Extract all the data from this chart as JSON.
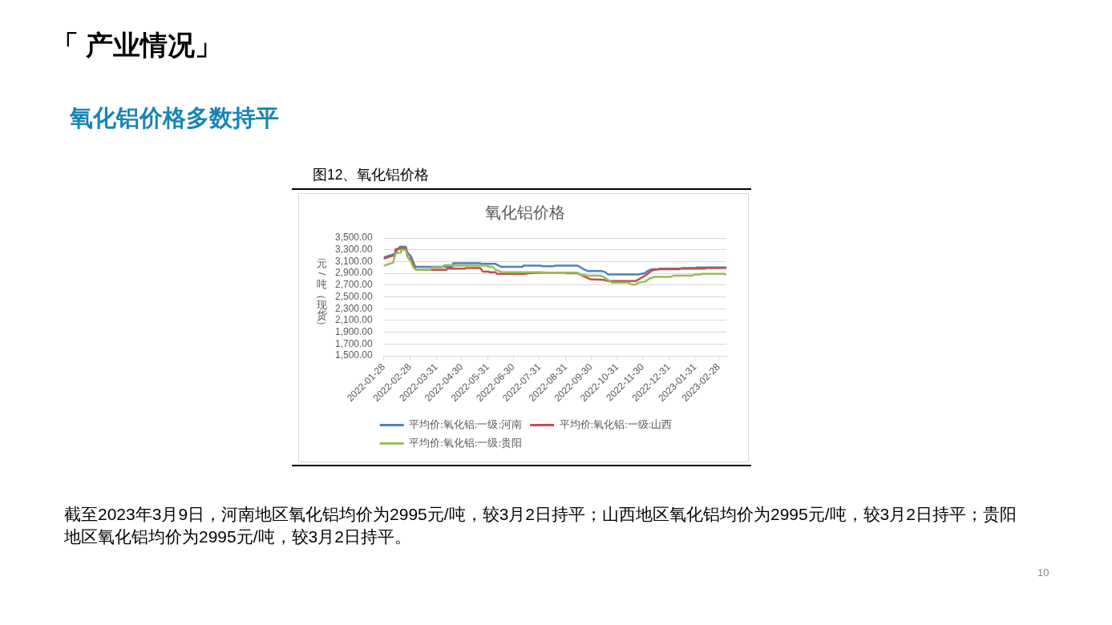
{
  "chart_data": {
    "type": "line",
    "title": "氧化铝价格",
    "ylabel": "元/吨（现货）",
    "annotations": [
      "「 产业情况」",
      "氧化铝价格多数持平",
      "图12、氧化铝价格",
      "截至2023年3月9日，河南地区氧化铝均价为2995元/吨，较3月2日持平；山西地区氧化铝均价为2995元/吨，较3月2日持平；贵阳地区氧化铝均价为2995元/吨，较3月2日持平。",
      "10"
    ],
    "xlim": [
      "2022-01-28",
      "2023-03-09"
    ],
    "xticks": [
      "2022-01-28",
      "2022-02-28",
      "2022-03-31",
      "2022-04-30",
      "2022-05-31",
      "2022-06-30",
      "2022-07-31",
      "2022-08-31",
      "2022-09-30",
      "2022-10-31",
      "2022-11-30",
      "2022-12-31",
      "2023-01-31",
      "2023-02-28"
    ],
    "ylim": [
      1500,
      3500
    ],
    "yticks": [
      {
        "value": 1500,
        "label": "1,500.00"
      },
      {
        "value": 1700,
        "label": "1,700.00"
      },
      {
        "value": 1900,
        "label": "1,900.00"
      },
      {
        "value": 2100,
        "label": "2,100.00"
      },
      {
        "value": 2300,
        "label": "2,300.00"
      },
      {
        "value": 2500,
        "label": "2,500.00"
      },
      {
        "value": 2700,
        "label": "2,700.00"
      },
      {
        "value": 2900,
        "label": "2,900.00"
      },
      {
        "value": 3100,
        "label": "3,100.00"
      },
      {
        "value": 3300,
        "label": "3,300.00"
      },
      {
        "value": 3500,
        "label": "3,500.00"
      }
    ],
    "grid": "y",
    "legend": "bottom",
    "marker": "none",
    "line_style": "solid",
    "series": [
      {
        "name": "平均价:氧化铝:一级:河南",
        "color": "#4f81bd",
        "x": [
          "2022-01-28",
          "2022-02-10",
          "2022-02-13",
          "2022-02-16",
          "2022-02-23",
          "2022-02-25",
          "2022-03-01",
          "2022-03-04",
          "2022-03-06",
          "2022-04-19",
          "2022-04-20",
          "2022-05-22",
          "2022-05-23",
          "2022-06-09",
          "2022-06-16",
          "2022-07-11",
          "2022-07-12",
          "2022-08-02",
          "2022-08-03",
          "2022-08-17",
          "2022-08-18",
          "2022-09-14",
          "2022-09-17",
          "2022-09-21",
          "2022-09-26",
          "2022-10-12",
          "2022-10-17",
          "2022-10-20",
          "2022-11-25",
          "2022-12-02",
          "2022-12-06",
          "2022-12-11",
          "2022-12-19",
          "2022-12-20",
          "2023-01-14",
          "2023-01-15",
          "2023-01-31",
          "2023-02-03",
          "2023-03-09"
        ],
        "values": [
          3170,
          3230,
          3300,
          3350,
          3350,
          3250,
          3190,
          3090,
          3010,
          3010,
          3070,
          3070,
          3060,
          3060,
          3010,
          3010,
          3030,
          3030,
          3020,
          3020,
          3030,
          3030,
          3010,
          2970,
          2940,
          2940,
          2920,
          2880,
          2880,
          2900,
          2940,
          2970,
          2970,
          2980,
          2980,
          2990,
          2990,
          3000,
          3000
        ]
      },
      {
        "name": "平均价:氧化铝:一级:山西",
        "color": "#c0504d",
        "x": [
          "2022-01-28",
          "2022-02-10",
          "2022-02-11",
          "2022-02-23",
          "2022-02-25",
          "2022-03-01",
          "2022-03-04",
          "2022-03-07",
          "2022-04-12",
          "2022-04-13",
          "2022-05-04",
          "2022-05-05",
          "2022-05-22",
          "2022-05-25",
          "2022-06-01",
          "2022-06-02",
          "2022-06-09",
          "2022-06-11",
          "2022-07-12",
          "2022-07-19",
          "2022-08-02",
          "2022-08-29",
          "2022-09-01",
          "2022-09-14",
          "2022-09-23",
          "2022-09-29",
          "2022-10-15",
          "2022-10-20",
          "2022-11-22",
          "2022-11-28",
          "2022-12-05",
          "2022-12-11",
          "2022-12-19",
          "2023-01-12",
          "2023-01-13",
          "2023-02-12",
          "2023-02-13",
          "2023-03-09"
        ],
        "values": [
          3150,
          3210,
          3310,
          3330,
          3180,
          3140,
          3050,
          2960,
          2960,
          2980,
          2980,
          2990,
          2990,
          2930,
          2930,
          2920,
          2920,
          2890,
          2890,
          2900,
          2910,
          2910,
          2900,
          2900,
          2840,
          2800,
          2790,
          2770,
          2770,
          2820,
          2880,
          2950,
          2970,
          2970,
          2980,
          2980,
          2990,
          2990
        ]
      },
      {
        "name": "平均价:氧化铝:一级:贵阳",
        "color": "#9bbb59",
        "x": [
          "2022-01-28",
          "2022-02-08",
          "2022-02-11",
          "2022-02-17",
          "2022-02-18",
          "2022-02-23",
          "2022-02-25",
          "2022-03-01",
          "2022-03-04",
          "2022-03-07",
          "2022-03-24",
          "2022-03-26",
          "2022-04-06",
          "2022-04-09",
          "2022-04-12",
          "2022-04-17",
          "2022-04-18",
          "2022-05-29",
          "2022-06-02",
          "2022-06-06",
          "2022-06-09",
          "2022-06-13",
          "2022-06-16",
          "2022-08-02",
          "2022-08-10",
          "2022-09-14",
          "2022-09-17",
          "2022-09-26",
          "2022-10-12",
          "2022-10-17",
          "2022-10-25",
          "2022-11-13",
          "2022-11-17",
          "2022-11-22",
          "2022-11-25",
          "2022-12-03",
          "2022-12-08",
          "2022-12-14",
          "2023-01-02",
          "2023-01-05",
          "2023-01-27",
          "2023-01-31",
          "2023-02-06",
          "2023-02-09",
          "2023-03-06",
          "2023-03-09"
        ],
        "values": [
          3030,
          3080,
          3240,
          3250,
          3300,
          3300,
          3180,
          3100,
          3000,
          2960,
          2960,
          3000,
          3000,
          3030,
          3040,
          3040,
          3030,
          3030,
          3010,
          3010,
          2960,
          2940,
          2920,
          2920,
          2910,
          2910,
          2880,
          2860,
          2860,
          2820,
          2740,
          2740,
          2710,
          2710,
          2740,
          2760,
          2810,
          2840,
          2840,
          2860,
          2860,
          2880,
          2880,
          2890,
          2890,
          2880
        ]
      }
    ]
  }
}
